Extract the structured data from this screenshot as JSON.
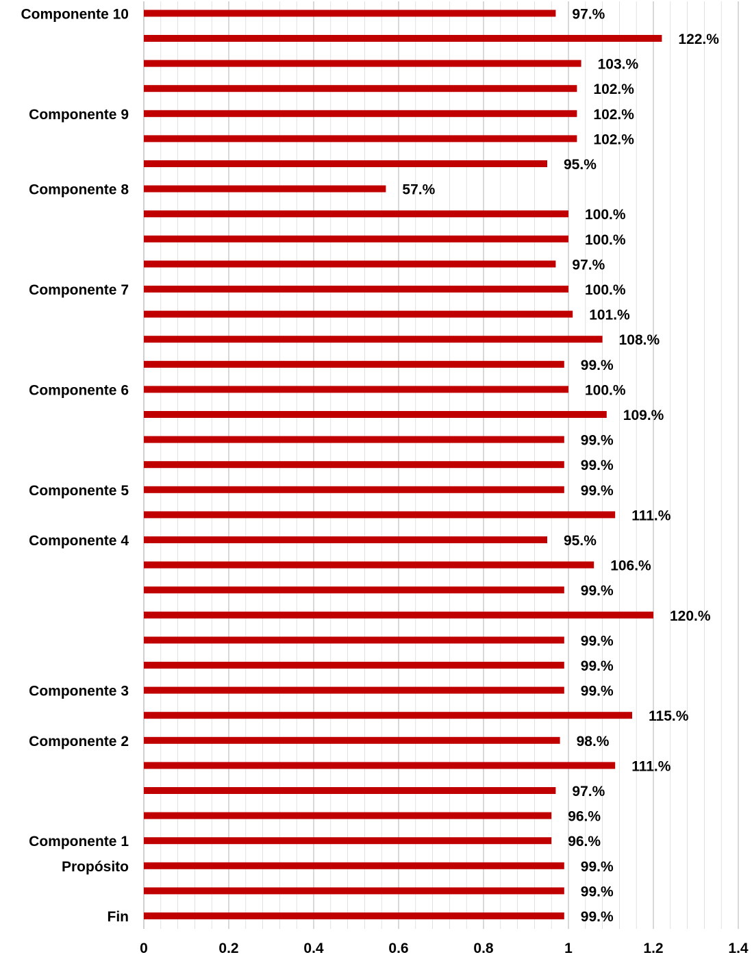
{
  "chart_data": {
    "type": "bar",
    "orientation": "horizontal",
    "categories": [
      "Fin",
      "",
      "Propósito",
      "Componente 1",
      "",
      "",
      "",
      "Componente 2",
      "",
      "Componente 3",
      "",
      "",
      "",
      "",
      "",
      "Componente 4",
      "",
      "Componente 5",
      "",
      "",
      "",
      "Componente 6",
      "",
      "",
      "",
      "Componente 7",
      "",
      "",
      "",
      "Componente 8",
      "",
      "",
      "Componente 9",
      "",
      "",
      "",
      "Componente 10"
    ],
    "values": [
      0.99,
      0.99,
      0.99,
      0.96,
      0.96,
      0.97,
      1.11,
      0.98,
      1.15,
      0.99,
      0.99,
      0.99,
      1.2,
      0.99,
      1.06,
      0.95,
      1.11,
      0.99,
      0.99,
      0.99,
      1.09,
      1.0,
      0.99,
      1.08,
      1.01,
      1.0,
      0.97,
      1.0,
      1.0,
      0.57,
      0.95,
      1.02,
      1.02,
      1.02,
      1.03,
      1.22,
      0.97
    ],
    "data_labels": [
      "99.%",
      "99.%",
      "99.%",
      "96.%",
      "96.%",
      "97.%",
      "111.%",
      "98.%",
      "115.%",
      "99.%",
      "99.%",
      "99.%",
      "120.%",
      "99.%",
      "106.%",
      "95.%",
      "111.%",
      "99.%",
      "99.%",
      "99.%",
      "109.%",
      "100.%",
      "99.%",
      "108.%",
      "101.%",
      "100.%",
      "97.%",
      "100.%",
      "100.%",
      "57.%",
      "95.%",
      "102.%",
      "102.%",
      "102.%",
      "103.%",
      "122.%",
      "97.%"
    ],
    "x_ticks": [
      "0",
      "0.2",
      "0.4",
      "0.6",
      "0.8",
      "1",
      "1.2",
      "1.4"
    ],
    "xlim": [
      0,
      1.4
    ],
    "grid": true,
    "bar_color": "#C00000",
    "grid_color": "#D9D9D9",
    "title": "",
    "xlabel": "",
    "ylabel": ""
  }
}
